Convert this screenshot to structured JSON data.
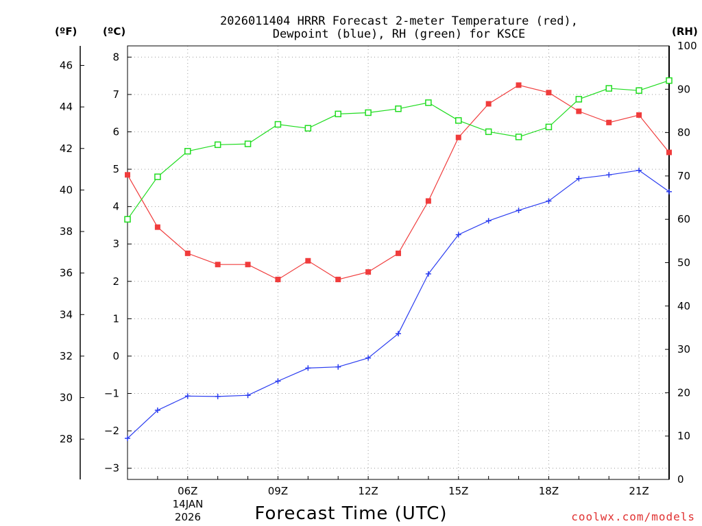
{
  "chart_data": {
    "type": "line",
    "title_line1": "2026011404 HRRR Forecast 2-meter Temperature (red),",
    "title_line2": "Dewpoint (blue), RH (green) for KSCE",
    "xlabel": "Forecast Time (UTC)",
    "date_line1": "14JAN",
    "date_line2": "2026",
    "credit": "coolwx.com/models",
    "unit_left_f": "(ºF)",
    "unit_left_c": "(ºC)",
    "unit_right": "(RH)",
    "x_hours": [
      4,
      5,
      6,
      7,
      8,
      9,
      10,
      11,
      12,
      13,
      14,
      15,
      16,
      17,
      18,
      19,
      20,
      21,
      22
    ],
    "x_range": [
      4,
      22
    ],
    "x_ticks": [
      {
        "hour": 6,
        "label": "06Z"
      },
      {
        "hour": 9,
        "label": "09Z"
      },
      {
        "hour": 12,
        "label": "12Z"
      },
      {
        "hour": 15,
        "label": "15Z"
      },
      {
        "hour": 18,
        "label": "18Z"
      },
      {
        "hour": 21,
        "label": "21Z"
      }
    ],
    "celsius_range": [
      -3.3,
      8.3
    ],
    "celsius_ticks": [
      "8",
      "7",
      "6",
      "5",
      "4",
      "3",
      "2",
      "1",
      "0",
      "−1",
      "−2",
      "−3"
    ],
    "celsius_tick_values": [
      8,
      7,
      6,
      5,
      4,
      3,
      2,
      1,
      0,
      -1,
      -2,
      -3
    ],
    "fahrenheit_ticks": [
      "46",
      "44",
      "42",
      "40",
      "38",
      "36",
      "34",
      "32",
      "30",
      "28"
    ],
    "fahrenheit_tick_values": [
      46,
      44,
      42,
      40,
      38,
      36,
      34,
      32,
      30,
      28
    ],
    "rh_range": [
      0,
      100
    ],
    "rh_ticks": [
      "100",
      "90",
      "80",
      "70",
      "60",
      "50",
      "40",
      "30",
      "20",
      "10",
      "0"
    ],
    "rh_tick_values": [
      100,
      90,
      80,
      70,
      60,
      50,
      40,
      30,
      20,
      10,
      0
    ],
    "series": [
      {
        "name": "Temperature",
        "color": "#f03c3c",
        "marker": "filled-square",
        "axis": "celsius",
        "values": [
          4.85,
          3.45,
          2.75,
          2.45,
          2.45,
          2.05,
          2.55,
          2.05,
          2.25,
          2.75,
          4.15,
          5.85,
          6.75,
          7.25,
          7.05,
          6.55,
          6.25,
          6.45,
          5.45
        ]
      },
      {
        "name": "Dewpoint",
        "color": "#2a3cf0",
        "marker": "plus",
        "axis": "celsius",
        "values": [
          -2.2,
          -1.45,
          -1.07,
          -1.08,
          -1.05,
          -0.67,
          -0.32,
          -0.29,
          -0.05,
          0.6,
          2.2,
          3.25,
          3.62,
          3.9,
          4.15,
          4.75,
          4.85,
          4.97,
          4.4
        ]
      },
      {
        "name": "RH",
        "color": "#1fdc1f",
        "marker": "open-square",
        "axis": "rh",
        "values": [
          60.0,
          69.8,
          75.7,
          77.2,
          77.4,
          81.9,
          81.0,
          84.3,
          84.6,
          85.5,
          86.9,
          82.8,
          80.2,
          79.0,
          81.3,
          87.7,
          90.2,
          89.7,
          92.0
        ]
      }
    ]
  }
}
